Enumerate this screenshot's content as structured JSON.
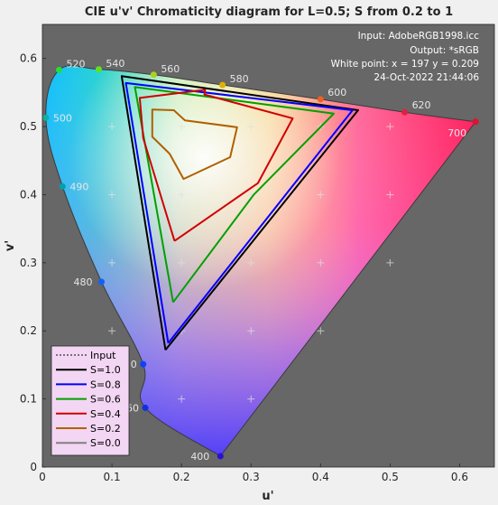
{
  "chart_data": {
    "type": "line",
    "title": "CIE u'v' Chromaticity diagram for L=0.5; S from 0.2 to 1",
    "xlabel": "u'",
    "ylabel": "v'",
    "xlim": [
      0,
      0.65
    ],
    "ylim": [
      0,
      0.65
    ],
    "xticks": [
      "0",
      "0.1",
      "0.2",
      "0.3",
      "0.4",
      "0.5",
      "0.6"
    ],
    "yticks": [
      "0",
      "0.1",
      "0.2",
      "0.3",
      "0.4",
      "0.5",
      "0.6"
    ],
    "xtick_values": [
      0,
      0.1,
      0.2,
      0.3,
      0.4,
      0.5,
      0.6
    ],
    "ytick_values": [
      0,
      0.1,
      0.2,
      0.3,
      0.4,
      0.5,
      0.6
    ],
    "info": [
      "Input:  AdobeRGB1998.icc",
      "Output: *sRGB",
      "White point:  x = 197  y = 0.209",
      "24-Oct-2022 21:44:06"
    ],
    "spectral_locus": [
      {
        "label": "400",
        "u": 0.256,
        "v": 0.016
      },
      {
        "label": "460",
        "u": 0.148,
        "v": 0.087
      },
      {
        "label": "0",
        "u": 0.145,
        "v": 0.151
      },
      {
        "label": "480",
        "u": 0.085,
        "v": 0.272
      },
      {
        "label": "490",
        "u": 0.029,
        "v": 0.412
      },
      {
        "label": "500",
        "u": 0.005,
        "v": 0.513
      },
      {
        "label": "520",
        "u": 0.024,
        "v": 0.583
      },
      {
        "label": "540",
        "u": 0.081,
        "v": 0.584
      },
      {
        "label": "560",
        "u": 0.16,
        "v": 0.576
      },
      {
        "label": "580",
        "u": 0.259,
        "v": 0.561
      },
      {
        "label": "600",
        "u": 0.4,
        "v": 0.54
      },
      {
        "label": "620",
        "u": 0.521,
        "v": 0.521
      },
      {
        "label": "700",
        "u": 0.623,
        "v": 0.507
      }
    ],
    "white_point_markers": [
      [
        0.1,
        0.5
      ],
      [
        0.2,
        0.5
      ],
      [
        0.3,
        0.5
      ],
      [
        0.4,
        0.5
      ],
      [
        0.5,
        0.5
      ],
      [
        0.1,
        0.4
      ],
      [
        0.2,
        0.4
      ],
      [
        0.3,
        0.4
      ],
      [
        0.4,
        0.4
      ],
      [
        0.5,
        0.4
      ],
      [
        0.1,
        0.3
      ],
      [
        0.2,
        0.3
      ],
      [
        0.3,
        0.3
      ],
      [
        0.4,
        0.3
      ],
      [
        0.5,
        0.3
      ],
      [
        0.1,
        0.2
      ],
      [
        0.2,
        0.2
      ],
      [
        0.3,
        0.2
      ],
      [
        0.4,
        0.2
      ],
      [
        0.2,
        0.1
      ],
      [
        0.3,
        0.1
      ]
    ],
    "series": [
      {
        "name": "Input",
        "color": "#000000",
        "dash": true,
        "points": [
          [
            0.177,
            0.172
          ],
          [
            0.114,
            0.574
          ],
          [
            0.454,
            0.524
          ],
          [
            0.177,
            0.172
          ]
        ]
      },
      {
        "name": "S=1.0",
        "color": "#000000",
        "points": [
          [
            0.177,
            0.172
          ],
          [
            0.114,
            0.574
          ],
          [
            0.454,
            0.524
          ],
          [
            0.177,
            0.172
          ]
        ]
      },
      {
        "name": "S=0.8",
        "color": "#0000ff",
        "points": [
          [
            0.181,
            0.182
          ],
          [
            0.12,
            0.564
          ],
          [
            0.446,
            0.524
          ],
          [
            0.181,
            0.182
          ]
        ]
      },
      {
        "name": "S=0.6",
        "color": "#00a000",
        "points": [
          [
            0.188,
            0.242
          ],
          [
            0.133,
            0.558
          ],
          [
            0.419,
            0.519
          ],
          [
            0.304,
            0.4
          ],
          [
            0.188,
            0.242
          ]
        ]
      },
      {
        "name": "S=0.4",
        "color": "#d00000",
        "points": [
          [
            0.19,
            0.332
          ],
          [
            0.145,
            0.483
          ],
          [
            0.14,
            0.542
          ],
          [
            0.234,
            0.554
          ],
          [
            0.233,
            0.547
          ],
          [
            0.36,
            0.512
          ],
          [
            0.31,
            0.417
          ],
          [
            0.19,
            0.332
          ]
        ]
      },
      {
        "name": "S=0.2",
        "color": "#b06000",
        "points": [
          [
            0.183,
            0.46
          ],
          [
            0.158,
            0.485
          ],
          [
            0.158,
            0.525
          ],
          [
            0.189,
            0.524
          ],
          [
            0.205,
            0.509
          ],
          [
            0.28,
            0.499
          ],
          [
            0.27,
            0.455
          ],
          [
            0.203,
            0.423
          ],
          [
            0.183,
            0.46
          ]
        ]
      },
      {
        "name": "S=0.0",
        "color": "#808080",
        "points": []
      }
    ]
  }
}
